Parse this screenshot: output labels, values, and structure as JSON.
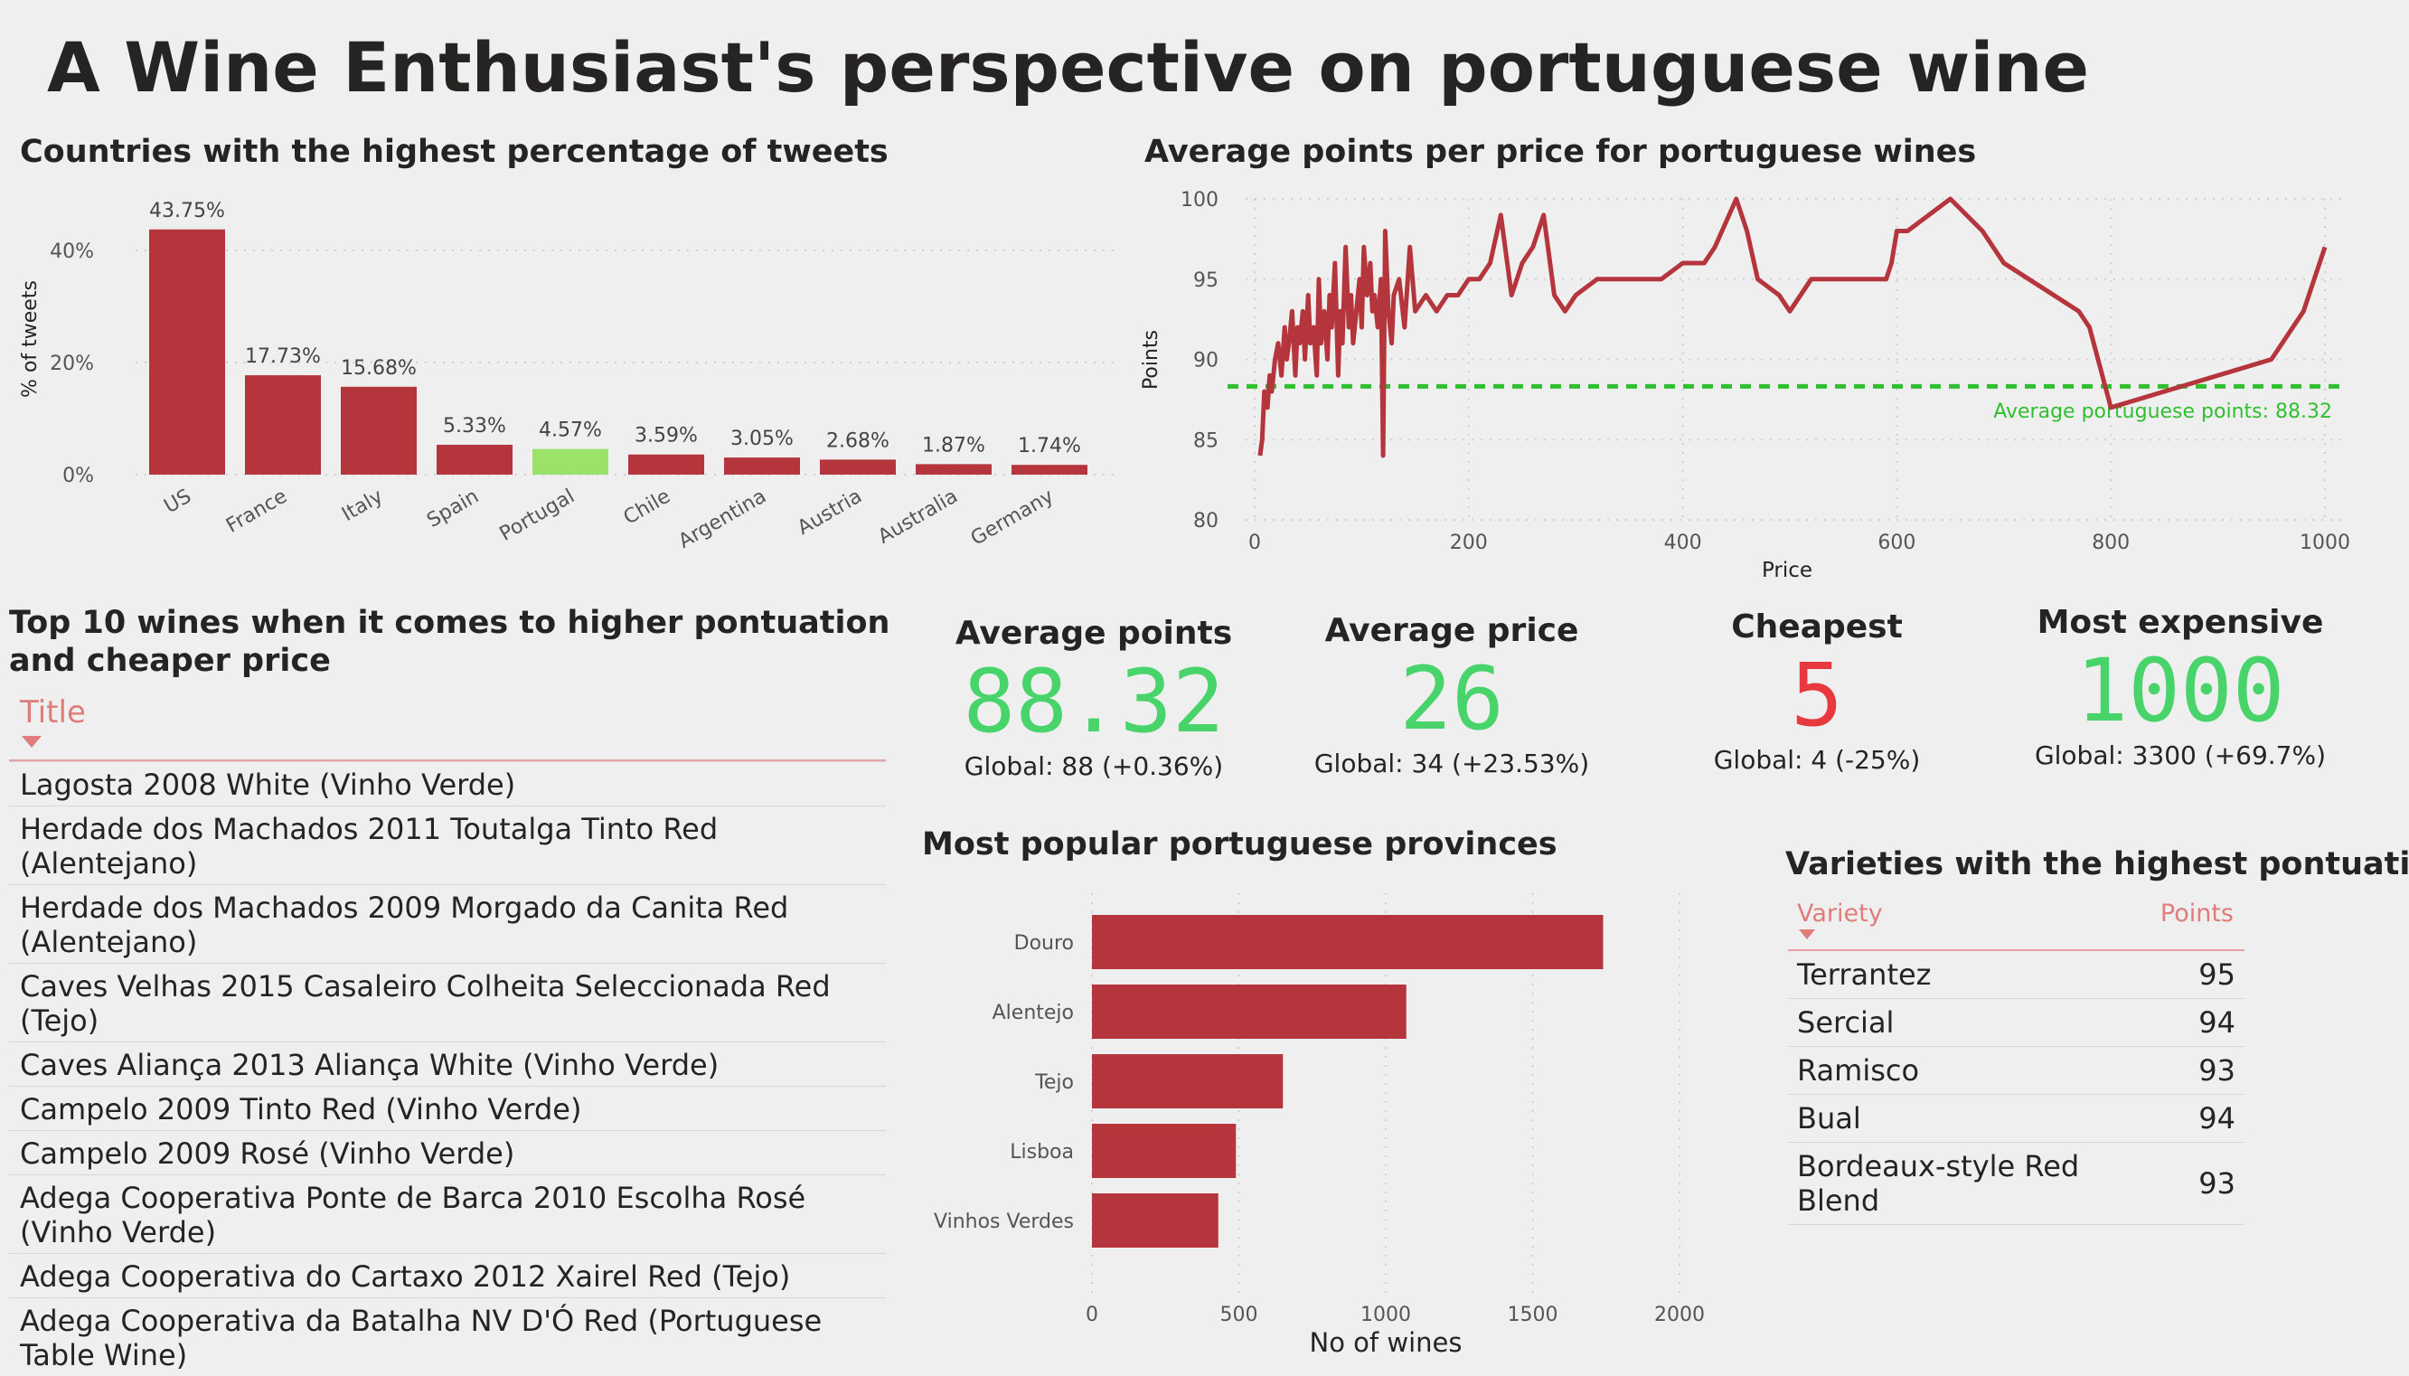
{
  "page": {
    "title": "A Wine Enthusiast's perspective on portuguese wine"
  },
  "colors": {
    "bar": "#b5353c",
    "highlight": "#9be26a",
    "green": "#48d46b",
    "red": "#e8393f",
    "ref_line": "#2fbf2f"
  },
  "chart_data": [
    {
      "type": "bar",
      "title": "Countries with the highest percentage of tweets",
      "ylabel": "% of tweets",
      "ylim": [
        0,
        50
      ],
      "yticks": [
        "0%",
        "20%",
        "40%"
      ],
      "categories": [
        "US",
        "France",
        "Italy",
        "Spain",
        "Portugal",
        "Chile",
        "Argentina",
        "Austria",
        "Australia",
        "Germany"
      ],
      "values": [
        43.75,
        17.73,
        15.68,
        5.33,
        4.57,
        3.59,
        3.05,
        2.68,
        1.87,
        1.74
      ],
      "labels": [
        "43.75%",
        "17.73%",
        "15.68%",
        "5.33%",
        "4.57%",
        "3.59%",
        "3.05%",
        "2.68%",
        "1.87%",
        "1.74%"
      ],
      "highlight": "Portugal"
    },
    {
      "type": "line",
      "title": "Average points per price for portuguese wines",
      "xlabel": "Price",
      "ylabel": "Points",
      "xlim": [
        0,
        1000
      ],
      "ylim": [
        80,
        100
      ],
      "xticks": [
        0,
        200,
        400,
        600,
        800,
        1000
      ],
      "yticks": [
        80,
        85,
        90,
        95,
        100
      ],
      "x": [
        5,
        7,
        9,
        12,
        14,
        16,
        19,
        22,
        25,
        28,
        30,
        32,
        35,
        38,
        40,
        42,
        45,
        47,
        50,
        52,
        55,
        58,
        60,
        62,
        65,
        68,
        70,
        72,
        75,
        78,
        80,
        82,
        85,
        88,
        90,
        92,
        95,
        98,
        100,
        102,
        105,
        108,
        110,
        112,
        115,
        118,
        120,
        122,
        125,
        128,
        130,
        135,
        140,
        145,
        150,
        160,
        170,
        180,
        190,
        200,
        210,
        220,
        230,
        240,
        250,
        260,
        270,
        280,
        290,
        300,
        320,
        350,
        380,
        400,
        420,
        430,
        450,
        460,
        470,
        490,
        500,
        520,
        550,
        580,
        590,
        595,
        600,
        610,
        650,
        680,
        700,
        770,
        780,
        800,
        850,
        900,
        950,
        980,
        1000
      ],
      "y": [
        84,
        85,
        88,
        87,
        89,
        88,
        90,
        91,
        89,
        92,
        90,
        91,
        93,
        89,
        92,
        91,
        93,
        90,
        94,
        91,
        92,
        89,
        95,
        91,
        93,
        90,
        94,
        92,
        96,
        89,
        93,
        91,
        97,
        92,
        94,
        91,
        93,
        95,
        92,
        97,
        94,
        96,
        93,
        94,
        92,
        95,
        84,
        98,
        93,
        91,
        94,
        95,
        92,
        97,
        93,
        94,
        93,
        94,
        94,
        95,
        95,
        96,
        99,
        94,
        96,
        97,
        99,
        94,
        93,
        94,
        95,
        95,
        95,
        96,
        96,
        97,
        100,
        98,
        95,
        94,
        93,
        95,
        95,
        95,
        95,
        96,
        98,
        98,
        100,
        98,
        96,
        93,
        92,
        87,
        88,
        89,
        90,
        93,
        97
      ],
      "reference_line": {
        "value": 88.32,
        "label": "Average portuguese points: 88.32"
      }
    },
    {
      "type": "bar",
      "orientation": "horizontal",
      "title": "Most popular portuguese provinces",
      "xlabel": "No of wines",
      "xlim": [
        0,
        2000
      ],
      "xticks": [
        0,
        500,
        1000,
        1500,
        2000
      ],
      "categories": [
        "Douro",
        "Alentejo",
        "Tejo",
        "Lisboa",
        "Vinhos Verdes"
      ],
      "values": [
        1740,
        1070,
        650,
        490,
        430
      ]
    }
  ],
  "cards": [
    {
      "label": "Average points",
      "value": "88.32",
      "sub": "Global: 88 (+0.36%)"
    },
    {
      "label": "Average price",
      "value": "26",
      "sub": "Global: 34 (+23.53%)"
    },
    {
      "label": "Cheapest",
      "value": "5",
      "sub": "Global: 4 (-25%)"
    },
    {
      "label": "Most expensive",
      "value": "1000",
      "sub": "Global: 3300 (+69.7%)"
    }
  ],
  "top_wines": {
    "title": "Top 10 wines when it comes to higher pontuation and cheaper price",
    "column": "Title",
    "rows": [
      "Lagosta 2008 White (Vinho Verde)",
      "Herdade dos Machados 2011 Toutalga Tinto Red (Alentejano)",
      "Herdade dos Machados 2009 Morgado da Canita Red (Alentejano)",
      "Caves Velhas 2015 Casaleiro Colheita Seleccionada Red (Tejo)",
      "Caves Aliança 2013 Aliança White (Vinho Verde)",
      "Campelo 2009 Tinto Red (Vinho Verde)",
      "Campelo 2009 Rosé (Vinho Verde)",
      "Adega Cooperativa Ponte de Barca 2010 Escolha Rosé (Vinho Verde)",
      "Adega Cooperativa do Cartaxo 2012 Xairel Red (Tejo)",
      "Adega Cooperativa da Batalha NV D'Ó Red (Portuguese Table Wine)"
    ]
  },
  "varieties": {
    "title": "Varieties with the highest pontuation",
    "columns": [
      "Variety",
      "Points"
    ],
    "rows": [
      {
        "variety": "Terrantez",
        "points": "95"
      },
      {
        "variety": "Sercial",
        "points": "94"
      },
      {
        "variety": "Ramisco",
        "points": "93"
      },
      {
        "variety": "Bual",
        "points": "94"
      },
      {
        "variety": "Bordeaux-style Red Blend",
        "points": "93"
      }
    ]
  }
}
